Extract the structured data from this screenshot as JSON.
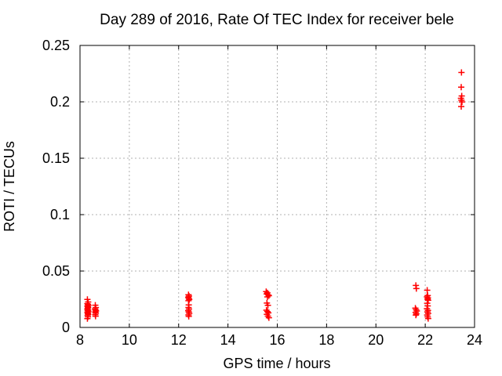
{
  "window": {
    "background": "#ffffff"
  },
  "colors": {
    "marker": "#ff0000",
    "axis": "#000000",
    "grid": "#b0b0b0",
    "text": "#000000"
  },
  "chart_data": {
    "type": "scatter",
    "title": "Day 289 of 2016, Rate Of TEC Index for receiver bele",
    "xlabel": "GPS time / hours",
    "ylabel": "ROTI / TECUs",
    "xlim": [
      8,
      24
    ],
    "ylim": [
      0,
      0.25
    ],
    "xticks": [
      8,
      10,
      12,
      14,
      16,
      18,
      20,
      22,
      24
    ],
    "xtick_labels": [
      "8",
      "10",
      "12",
      "14",
      "16",
      "18",
      "20",
      "22",
      "24"
    ],
    "yticks": [
      0,
      0.05,
      0.1,
      0.15,
      0.2,
      0.25
    ],
    "ytick_labels": [
      "0",
      "0.05",
      "0.1",
      "0.15",
      "0.2",
      "0.25"
    ],
    "grid": true,
    "grid_style": "dashed",
    "legend": "none",
    "marker": {
      "shape": "plus",
      "color": "#ff0000",
      "size": 9
    },
    "series": [
      {
        "name": "ROTI",
        "points": [
          [
            8.3,
            0.0248
          ],
          [
            8.33,
            0.0226
          ],
          [
            8.3,
            0.0211
          ],
          [
            8.32,
            0.0203
          ],
          [
            8.34,
            0.0196
          ],
          [
            8.3,
            0.0189
          ],
          [
            8.32,
            0.0182
          ],
          [
            8.33,
            0.0176
          ],
          [
            8.31,
            0.0169
          ],
          [
            8.3,
            0.0161
          ],
          [
            8.33,
            0.0154
          ],
          [
            8.31,
            0.0147
          ],
          [
            8.34,
            0.0139
          ],
          [
            8.3,
            0.0132
          ],
          [
            8.32,
            0.0124
          ],
          [
            8.33,
            0.0116
          ],
          [
            8.31,
            0.0107
          ],
          [
            8.32,
            0.0094
          ],
          [
            8.3,
            0.0078
          ],
          [
            8.62,
            0.0197
          ],
          [
            8.64,
            0.0176
          ],
          [
            8.61,
            0.0164
          ],
          [
            8.63,
            0.0154
          ],
          [
            8.65,
            0.0146
          ],
          [
            8.62,
            0.0137
          ],
          [
            8.64,
            0.0127
          ],
          [
            8.62,
            0.0114
          ],
          [
            8.63,
            0.01
          ],
          [
            12.4,
            0.029
          ],
          [
            12.42,
            0.0278
          ],
          [
            12.39,
            0.0268
          ],
          [
            12.41,
            0.0258
          ],
          [
            12.43,
            0.0247
          ],
          [
            12.4,
            0.0237
          ],
          [
            12.41,
            0.02
          ],
          [
            12.4,
            0.0177
          ],
          [
            12.42,
            0.0163
          ],
          [
            12.39,
            0.0149
          ],
          [
            12.41,
            0.0137
          ],
          [
            12.43,
            0.0124
          ],
          [
            12.4,
            0.0111
          ],
          [
            12.41,
            0.0098
          ],
          [
            15.55,
            0.0318
          ],
          [
            15.6,
            0.0306
          ],
          [
            15.57,
            0.0297
          ],
          [
            15.63,
            0.0289
          ],
          [
            15.66,
            0.0281
          ],
          [
            15.6,
            0.0271
          ],
          [
            15.58,
            0.0216
          ],
          [
            15.62,
            0.0196
          ],
          [
            15.56,
            0.0153
          ],
          [
            15.6,
            0.0141
          ],
          [
            15.64,
            0.0129
          ],
          [
            15.58,
            0.0116
          ],
          [
            15.62,
            0.0101
          ],
          [
            15.66,
            0.0086
          ],
          [
            21.62,
            0.0372
          ],
          [
            21.64,
            0.0345
          ],
          [
            21.6,
            0.0171
          ],
          [
            21.63,
            0.0157
          ],
          [
            21.66,
            0.0146
          ],
          [
            21.61,
            0.0134
          ],
          [
            21.64,
            0.0121
          ],
          [
            21.62,
            0.0109
          ],
          [
            22.08,
            0.033
          ],
          [
            22.1,
            0.0283
          ],
          [
            22.07,
            0.0271
          ],
          [
            22.11,
            0.0261
          ],
          [
            22.09,
            0.0251
          ],
          [
            22.12,
            0.0241
          ],
          [
            22.08,
            0.0214
          ],
          [
            22.1,
            0.0191
          ],
          [
            22.07,
            0.0166
          ],
          [
            22.11,
            0.0151
          ],
          [
            22.09,
            0.0138
          ],
          [
            22.12,
            0.0124
          ],
          [
            22.08,
            0.011
          ],
          [
            22.1,
            0.0094
          ],
          [
            22.12,
            0.0079
          ],
          [
            23.47,
            0.226
          ],
          [
            23.46,
            0.213
          ],
          [
            23.48,
            0.2052
          ],
          [
            23.45,
            0.2031
          ],
          [
            23.47,
            0.2014
          ],
          [
            23.49,
            0.1999
          ],
          [
            23.46,
            0.1958
          ]
        ]
      }
    ]
  }
}
